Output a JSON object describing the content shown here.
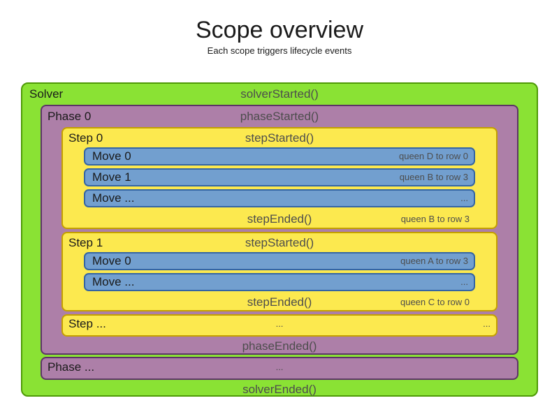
{
  "title": "Scope overview",
  "subtitle": "Each scope triggers lifecycle events",
  "colors": {
    "solver_fill": "#8ae234",
    "solver_border": "#4e9a06",
    "phase_fill": "#ad7fa8",
    "phase_border": "#5c3566",
    "step_fill": "#fce94f",
    "step_border": "#c4a000",
    "move_fill": "#729fcf",
    "move_border": "#3465a4",
    "event_text": "#4d4d4d",
    "label_text": "#1a1a1a"
  },
  "solver": {
    "label": "Solver",
    "started": "solverStarted()",
    "ended": "solverEnded()",
    "phases": [
      {
        "label": "Phase 0",
        "started": "phaseStarted()",
        "ended": "phaseEnded()",
        "steps": [
          {
            "label": "Step 0",
            "started": "stepStarted()",
            "moves": [
              {
                "label": "Move 0",
                "annotation": "queen D to row 0"
              },
              {
                "label": "Move 1",
                "annotation": "queen B to row 3"
              },
              {
                "label": "Move ...",
                "annotation": "..."
              }
            ],
            "ended": "stepEnded()",
            "ended_annotation": "queen B to row 3"
          },
          {
            "label": "Step 1",
            "started": "stepStarted()",
            "moves": [
              {
                "label": "Move 0",
                "annotation": "queen A to row 3"
              },
              {
                "label": "Move ...",
                "annotation": "..."
              }
            ],
            "ended": "stepEnded()",
            "ended_annotation": "queen C to row 0"
          },
          {
            "label": "Step ...",
            "center": "...",
            "right": "..."
          }
        ]
      },
      {
        "label": "Phase ...",
        "center": "..."
      }
    ]
  }
}
